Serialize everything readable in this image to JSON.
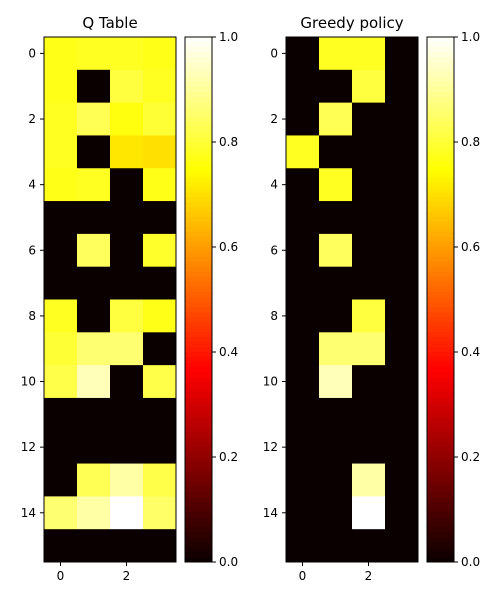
{
  "colormap": "hot",
  "chart_data": [
    {
      "type": "heatmap",
      "title": "Q Table",
      "rows": 16,
      "cols": 4,
      "x_ticks": [
        0,
        2
      ],
      "y_ticks": [
        0,
        2,
        4,
        6,
        8,
        10,
        12,
        14
      ],
      "colorbar": {
        "range": [
          0.0,
          1.0
        ],
        "ticks": [
          "0.0",
          "0.2",
          "0.4",
          "0.6",
          "0.8",
          "1.0"
        ]
      },
      "values": [
        [
          0.77,
          0.78,
          0.78,
          0.77
        ],
        [
          0.77,
          0.0,
          0.81,
          0.78
        ],
        [
          0.78,
          0.83,
          0.76,
          0.8
        ],
        [
          0.78,
          0.0,
          0.71,
          0.7
        ],
        [
          0.77,
          0.78,
          0.0,
          0.77
        ],
        [
          0.0,
          0.0,
          0.0,
          0.0
        ],
        [
          0.0,
          0.84,
          0.0,
          0.79
        ],
        [
          0.0,
          0.0,
          0.0,
          0.0
        ],
        [
          0.78,
          0.0,
          0.81,
          0.77
        ],
        [
          0.8,
          0.86,
          0.86,
          0.0
        ],
        [
          0.82,
          0.93,
          0.0,
          0.82
        ],
        [
          0.0,
          0.0,
          0.0,
          0.0
        ],
        [
          0.0,
          0.0,
          0.0,
          0.0
        ],
        [
          0.0,
          0.83,
          0.91,
          0.82
        ],
        [
          0.86,
          0.91,
          1.0,
          0.85
        ],
        [
          0.0,
          0.0,
          0.0,
          0.0
        ]
      ]
    },
    {
      "type": "heatmap",
      "title": "Greedy policy",
      "rows": 16,
      "cols": 4,
      "x_ticks": [
        0,
        2
      ],
      "y_ticks": [
        0,
        2,
        4,
        6,
        8,
        10,
        12,
        14
      ],
      "colorbar": {
        "range": [
          0.0,
          1.0
        ],
        "ticks": [
          "0.0",
          "0.2",
          "0.4",
          "0.6",
          "0.8",
          "1.0"
        ]
      },
      "values": [
        [
          0.0,
          0.78,
          0.78,
          0.0
        ],
        [
          0.0,
          0.0,
          0.81,
          0.0
        ],
        [
          0.0,
          0.83,
          0.0,
          0.0
        ],
        [
          0.78,
          0.0,
          0.0,
          0.0
        ],
        [
          0.0,
          0.78,
          0.0,
          0.0
        ],
        [
          0.0,
          0.0,
          0.0,
          0.0
        ],
        [
          0.0,
          0.84,
          0.0,
          0.0
        ],
        [
          0.0,
          0.0,
          0.0,
          0.0
        ],
        [
          0.0,
          0.0,
          0.81,
          0.0
        ],
        [
          0.0,
          0.86,
          0.86,
          0.0
        ],
        [
          0.0,
          0.93,
          0.0,
          0.0
        ],
        [
          0.0,
          0.0,
          0.0,
          0.0
        ],
        [
          0.0,
          0.0,
          0.0,
          0.0
        ],
        [
          0.0,
          0.0,
          0.91,
          0.0
        ],
        [
          0.0,
          0.0,
          1.0,
          0.0
        ],
        [
          0.0,
          0.0,
          0.0,
          0.0
        ]
      ]
    }
  ]
}
